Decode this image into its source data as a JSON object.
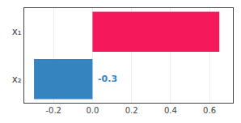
{
  "chart_data": {
    "type": "bar",
    "orientation": "horizontal",
    "categories": [
      "x₁",
      "x₂"
    ],
    "values": [
      0.65,
      -0.3
    ],
    "colors": [
      "#f5185a",
      "#3584c0"
    ],
    "xlim": [
      -0.35,
      0.72
    ],
    "xticks": [
      -0.2,
      {
        "value": 0,
        "label": "0.0"
      },
      0.2,
      0.4,
      0.6
    ],
    "grid": true,
    "annotations": [
      {
        "text": "-0.3",
        "x": 0.02,
        "y": "x₂",
        "color": "#3584c0"
      }
    ]
  }
}
